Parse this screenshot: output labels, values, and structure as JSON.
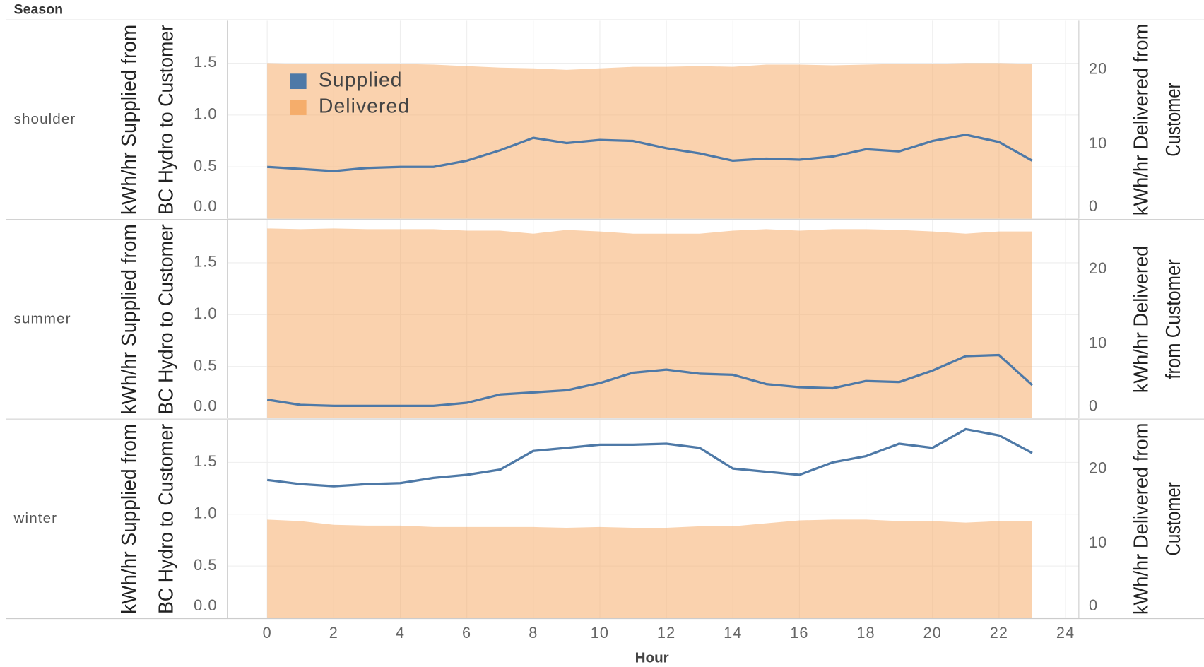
{
  "chart_data": [
    {
      "type": "combo",
      "facet_label": "Season",
      "row_label": "shoulder",
      "ylabel": [
        "kWh/hr Supplied from",
        "BC Hydro to Customer"
      ],
      "y2label": [
        "kWh/hr Delivered from",
        "Customer"
      ],
      "x": [
        0,
        1,
        2,
        3,
        4,
        5,
        6,
        7,
        8,
        9,
        10,
        11,
        12,
        13,
        14,
        15,
        16,
        17,
        18,
        19,
        20,
        21,
        22,
        23
      ],
      "xlim": [
        -1.2,
        24.4
      ],
      "xticks": [
        0,
        2,
        4,
        6,
        8,
        10,
        12,
        14,
        16,
        18,
        20,
        22,
        24
      ],
      "ylim": [
        0,
        1.91
      ],
      "yticks": [
        {
          "value": 0,
          "label": "0.0"
        },
        {
          "value": 0.5,
          "label": "0.5"
        },
        {
          "value": 1,
          "label": "1.0"
        },
        {
          "value": 1.5,
          "label": "1.5"
        }
      ],
      "y2lim": [
        0,
        26.6
      ],
      "y2ticks": [
        0,
        10,
        20
      ],
      "grid": true,
      "legend": "top-left",
      "series": [
        {
          "name": "Delivered",
          "color": "#f5ad6b",
          "axis": "y2",
          "style": "area",
          "values": [
            20.9,
            20.8,
            20.8,
            20.8,
            20.8,
            20.7,
            20.5,
            20.3,
            20.2,
            20.0,
            20.2,
            20.4,
            20.4,
            20.5,
            20.4,
            20.7,
            20.7,
            20.6,
            20.7,
            20.8,
            20.8,
            20.9,
            20.9,
            20.8
          ]
        },
        {
          "name": "Supplied",
          "color": "#4e79a7",
          "axis": "y",
          "style": "line",
          "values": [
            0.5,
            0.48,
            0.46,
            0.49,
            0.5,
            0.5,
            0.56,
            0.66,
            0.78,
            0.73,
            0.76,
            0.75,
            0.68,
            0.63,
            0.56,
            0.58,
            0.57,
            0.6,
            0.67,
            0.65,
            0.75,
            0.81,
            0.74,
            0.56
          ]
        }
      ]
    },
    {
      "type": "combo",
      "row_label": "summer",
      "ylabel": [
        "kWh/hr Supplied from",
        "BC Hydro to Customer"
      ],
      "y2label": [
        "kWh/hr Delivered",
        "from Customer"
      ],
      "x": [
        0,
        1,
        2,
        3,
        4,
        5,
        6,
        7,
        8,
        9,
        10,
        11,
        12,
        13,
        14,
        15,
        16,
        17,
        18,
        19,
        20,
        21,
        22,
        23
      ],
      "xlim": [
        -1.2,
        24.4
      ],
      "xticks": [
        0,
        2,
        4,
        6,
        8,
        10,
        12,
        14,
        16,
        18,
        20,
        22,
        24
      ],
      "ylim": [
        0,
        1.91
      ],
      "yticks": [
        {
          "value": 0,
          "label": "0.0"
        },
        {
          "value": 0.5,
          "label": "0.5"
        },
        {
          "value": 1,
          "label": "1.0"
        },
        {
          "value": 1.5,
          "label": "1.5"
        }
      ],
      "y2lim": [
        0,
        26.6
      ],
      "y2ticks": [
        0,
        10,
        20
      ],
      "grid": true,
      "series": [
        {
          "name": "Delivered",
          "color": "#f5ad6b",
          "axis": "y2",
          "style": "area",
          "values": [
            25.5,
            25.4,
            25.5,
            25.4,
            25.4,
            25.4,
            25.2,
            25.2,
            24.8,
            25.3,
            25.1,
            24.8,
            24.8,
            24.8,
            25.2,
            25.4,
            25.2,
            25.4,
            25.4,
            25.3,
            25.1,
            24.8,
            25.1,
            25.1
          ]
        },
        {
          "name": "Supplied",
          "color": "#4e79a7",
          "axis": "y",
          "style": "line",
          "values": [
            0.18,
            0.13,
            0.12,
            0.12,
            0.12,
            0.12,
            0.15,
            0.23,
            0.25,
            0.27,
            0.34,
            0.44,
            0.47,
            0.43,
            0.42,
            0.33,
            0.3,
            0.29,
            0.36,
            0.35,
            0.46,
            0.6,
            0.61,
            0.32
          ]
        }
      ]
    },
    {
      "type": "combo",
      "row_label": "winter",
      "xlabel": "Hour",
      "ylabel": [
        "kWh/hr Supplied from",
        "BC Hydro to Customer"
      ],
      "y2label": [
        "kWh/hr Delivered from",
        "Customer"
      ],
      "x": [
        0,
        1,
        2,
        3,
        4,
        5,
        6,
        7,
        8,
        9,
        10,
        11,
        12,
        13,
        14,
        15,
        16,
        17,
        18,
        19,
        20,
        21,
        22,
        23
      ],
      "xlim": [
        -1.2,
        24.4
      ],
      "xticks": [
        0,
        2,
        4,
        6,
        8,
        10,
        12,
        14,
        16,
        18,
        20,
        22,
        24
      ],
      "ylim": [
        0,
        1.91
      ],
      "yticks": [
        {
          "value": 0,
          "label": "0.0"
        },
        {
          "value": 0.5,
          "label": "0.5"
        },
        {
          "value": 1,
          "label": "1.0"
        },
        {
          "value": 1.5,
          "label": "1.5"
        }
      ],
      "y2lim": [
        0,
        26.6
      ],
      "y2ticks": [
        0,
        10,
        20
      ],
      "grid": true,
      "series": [
        {
          "name": "Delivered",
          "color": "#f5ad6b",
          "axis": "y2",
          "style": "area",
          "values": [
            13.2,
            13.0,
            12.5,
            12.4,
            12.4,
            12.2,
            12.2,
            12.2,
            12.2,
            12.1,
            12.2,
            12.1,
            12.1,
            12.3,
            12.3,
            12.7,
            13.1,
            13.2,
            13.2,
            13.0,
            13.0,
            12.8,
            13.0,
            13.0
          ]
        },
        {
          "name": "Supplied",
          "color": "#4e79a7",
          "axis": "y",
          "style": "line",
          "values": [
            1.33,
            1.29,
            1.27,
            1.29,
            1.3,
            1.35,
            1.38,
            1.43,
            1.61,
            1.64,
            1.67,
            1.67,
            1.68,
            1.64,
            1.44,
            1.41,
            1.38,
            1.5,
            1.56,
            1.68,
            1.64,
            1.82,
            1.76,
            1.59
          ]
        }
      ]
    }
  ]
}
